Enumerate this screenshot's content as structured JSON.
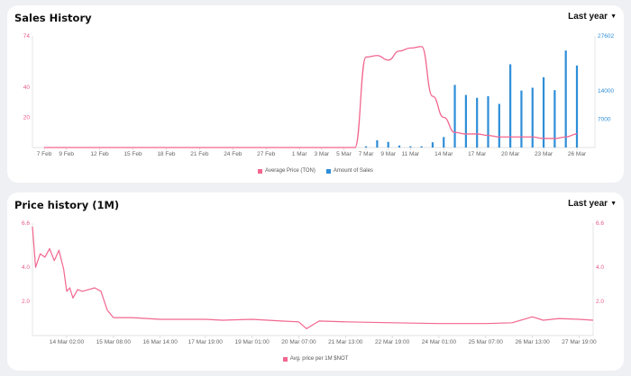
{
  "sales": {
    "title": "Sales History",
    "period": "Last year",
    "colors": {
      "price": "#f2668f",
      "sales": "#2e8ed8"
    },
    "legend": {
      "price": "Average Price (TON)",
      "sales": "Amount of Sales"
    }
  },
  "history": {
    "title": "Price history (1M)",
    "period": "Last year",
    "colors": {
      "price": "#f2668f"
    },
    "legend": {
      "price": "Avg. price per 1M $NOT"
    }
  },
  "chart_data": [
    {
      "type": "bar",
      "title": "Sales History",
      "x_ticks": [
        "7 Feb",
        "9 Feb",
        "12 Feb",
        "15 Feb",
        "18 Feb",
        "21 Feb",
        "24 Feb",
        "27 Feb",
        "1 Mar",
        "3 Mar",
        "5 Mar",
        "7 Mar",
        "9 Mar",
        "11 Mar",
        "14 Mar",
        "17 Mar",
        "20 Mar",
        "23 Mar",
        "26 Mar"
      ],
      "y_left_ticks": [
        "74",
        "40",
        "20"
      ],
      "y_right_ticks": [
        "27602",
        "14000",
        "7000"
      ],
      "y_left_lim": [
        0,
        74
      ],
      "y_right_lim": [
        0,
        27602
      ],
      "series": [
        {
          "name": "Average Price (TON)",
          "kind": "line",
          "axis": "left",
          "x": [
            "7 Feb",
            "5 Mar",
            "6 Mar",
            "7 Mar",
            "8 Mar",
            "9 Mar",
            "10 Mar",
            "11 Mar",
            "12 Mar",
            "13 Mar",
            "14 Mar",
            "15 Mar",
            "16 Mar",
            "17 Mar",
            "18 Mar",
            "19 Mar",
            "20 Mar",
            "21 Mar",
            "22 Mar",
            "23 Mar",
            "24 Mar",
            "25 Mar",
            "26 Mar"
          ],
          "values": [
            0,
            0,
            0,
            60,
            61,
            58,
            64,
            66,
            67,
            34,
            20,
            10,
            9,
            9,
            8,
            7,
            7,
            7,
            7,
            6,
            6,
            7,
            9
          ]
        },
        {
          "name": "Amount of Sales",
          "kind": "bar",
          "axis": "right",
          "x": [
            "7 Mar",
            "8 Mar",
            "9 Mar",
            "10 Mar",
            "11 Mar",
            "12 Mar",
            "13 Mar",
            "14 Mar",
            "15 Mar",
            "16 Mar",
            "17 Mar",
            "18 Mar",
            "19 Mar",
            "20 Mar",
            "21 Mar",
            "22 Mar",
            "23 Mar",
            "24 Mar",
            "25 Mar",
            "26 Mar"
          ],
          "values": [
            300,
            1800,
            1400,
            500,
            300,
            300,
            1300,
            2600,
            15500,
            13000,
            12300,
            12700,
            10800,
            20600,
            14100,
            14800,
            17400,
            14200,
            24000,
            20300
          ]
        }
      ]
    },
    {
      "type": "line",
      "title": "Price history (1M)",
      "x_ticks": [
        "14 Mar 02:00",
        "15 Mar 08:00",
        "16 Mar 14:00",
        "17 Mar 19:00",
        "19 Mar 01:00",
        "20 Mar 07:00",
        "21 Mar 13:00",
        "22 Mar 19:00",
        "24 Mar 01:00",
        "25 Mar 07:00",
        "26 Mar 13:00",
        "27 Mar 19:00"
      ],
      "y_left_ticks": [
        "6.6",
        "4.0",
        "2.0"
      ],
      "y_right_ticks": [
        "6.6",
        "4.0",
        "2.0"
      ],
      "ylim": [
        0,
        6.6
      ],
      "series": [
        {
          "name": "Avg. price per 1M $NOT",
          "x": [
            "13 Mar 04:00",
            "13 Mar 06:00",
            "13 Mar 09:00",
            "13 Mar 12:00",
            "13 Mar 15:00",
            "13 Mar 18:00",
            "13 Mar 21:00",
            "14 Mar 00:00",
            "14 Mar 02:00",
            "14 Mar 04:00",
            "14 Mar 06:00",
            "14 Mar 09:00",
            "14 Mar 12:00",
            "14 Mar 16:00",
            "14 Mar 20:00",
            "15 Mar 00:00",
            "15 Mar 04:00",
            "15 Mar 08:00",
            "15 Mar 20:00",
            "16 Mar 14:00",
            "17 Mar 19:00",
            "18 Mar 06:00",
            "19 Mar 01:00",
            "19 Mar 20:00",
            "20 Mar 07:00",
            "20 Mar 12:00",
            "20 Mar 20:00",
            "21 Mar 13:00",
            "22 Mar 19:00",
            "24 Mar 01:00",
            "25 Mar 07:00",
            "26 Mar 00:00",
            "26 Mar 13:00",
            "26 Mar 20:00",
            "27 Mar 06:00",
            "27 Mar 19:00",
            "28 Mar 04:00"
          ],
          "values": [
            6.4,
            4.0,
            4.8,
            4.6,
            5.1,
            4.4,
            5.0,
            3.9,
            2.6,
            2.8,
            2.2,
            2.7,
            2.6,
            2.7,
            2.8,
            2.6,
            1.5,
            1.05,
            1.05,
            0.95,
            0.95,
            0.9,
            0.95,
            0.85,
            0.8,
            0.4,
            0.85,
            0.8,
            0.75,
            0.7,
            0.7,
            0.75,
            1.1,
            0.9,
            1.0,
            0.95,
            0.9
          ]
        }
      ]
    }
  ]
}
